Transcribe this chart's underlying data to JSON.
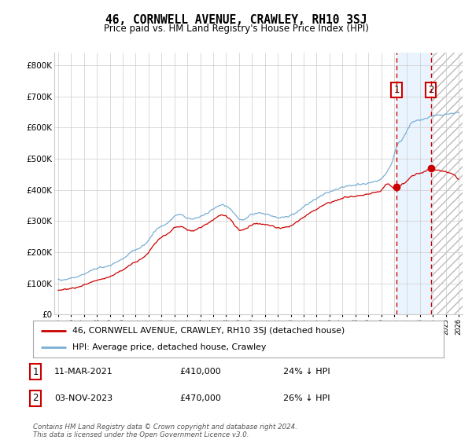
{
  "title": "46, CORNWELL AVENUE, CRAWLEY, RH10 3SJ",
  "subtitle": "Price paid vs. HM Land Registry's House Price Index (HPI)",
  "footer": "Contains HM Land Registry data © Crown copyright and database right 2024.\nThis data is licensed under the Open Government Licence v3.0.",
  "legend_line1": "46, CORNWELL AVENUE, CRAWLEY, RH10 3SJ (detached house)",
  "legend_line2": "HPI: Average price, detached house, Crawley",
  "annotation1_date": "11-MAR-2021",
  "annotation1_price": "£410,000",
  "annotation1_pct": "24% ↓ HPI",
  "annotation2_date": "03-NOV-2023",
  "annotation2_price": "£470,000",
  "annotation2_pct": "26% ↓ HPI",
  "red_color": "#cc0000",
  "blue_color": "#7aafd4",
  "background_color": "#ffffff",
  "grid_color": "#cccccc",
  "ylim": [
    0,
    840000
  ],
  "yticks": [
    0,
    100000,
    200000,
    300000,
    400000,
    500000,
    600000,
    700000,
    800000
  ],
  "xlim_start": 1994.7,
  "xlim_end": 2026.3,
  "marker1_x": 2021.19,
  "marker1_y": 410000,
  "marker2_x": 2023.84,
  "marker2_y": 470000,
  "vline1_x": 2021.19,
  "vline2_x": 2023.84,
  "shade_start": 2021.19,
  "shade_end": 2023.84,
  "hpi_years": [
    1995.0,
    1995.5,
    1996.0,
    1996.5,
    1997.0,
    1997.5,
    1998.0,
    1998.5,
    1999.0,
    1999.5,
    2000.0,
    2000.5,
    2001.0,
    2001.5,
    2002.0,
    2002.5,
    2003.0,
    2003.5,
    2004.0,
    2004.5,
    2005.0,
    2005.5,
    2006.0,
    2006.5,
    2007.0,
    2007.5,
    2008.0,
    2008.5,
    2009.0,
    2009.5,
    2010.0,
    2010.5,
    2011.0,
    2011.5,
    2012.0,
    2012.5,
    2013.0,
    2013.5,
    2014.0,
    2014.5,
    2015.0,
    2015.5,
    2016.0,
    2016.5,
    2017.0,
    2017.5,
    2018.0,
    2018.5,
    2019.0,
    2019.5,
    2020.0,
    2020.5,
    2021.0,
    2021.19,
    2021.5,
    2022.0,
    2022.5,
    2023.0,
    2023.5,
    2023.84,
    2024.0,
    2024.5,
    2025.0,
    2025.5,
    2026.0
  ],
  "hpi_values": [
    112000,
    113000,
    117000,
    122000,
    130000,
    140000,
    148000,
    152000,
    158000,
    168000,
    178000,
    196000,
    208000,
    218000,
    240000,
    268000,
    285000,
    295000,
    315000,
    320000,
    310000,
    308000,
    315000,
    325000,
    338000,
    350000,
    348000,
    330000,
    305000,
    308000,
    322000,
    325000,
    322000,
    318000,
    310000,
    312000,
    318000,
    330000,
    345000,
    360000,
    372000,
    385000,
    395000,
    400000,
    408000,
    412000,
    415000,
    418000,
    422000,
    428000,
    435000,
    460000,
    510000,
    539000,
    555000,
    590000,
    620000,
    625000,
    630000,
    635000,
    638000,
    640000,
    642000,
    645000,
    648000
  ],
  "red_years": [
    1995.0,
    1995.5,
    1996.0,
    1996.5,
    1997.0,
    1997.5,
    1998.0,
    1998.5,
    1999.0,
    1999.5,
    2000.0,
    2000.5,
    2001.0,
    2001.5,
    2002.0,
    2002.5,
    2003.0,
    2003.5,
    2004.0,
    2004.5,
    2005.0,
    2005.5,
    2006.0,
    2006.5,
    2007.0,
    2007.5,
    2008.0,
    2008.5,
    2009.0,
    2009.5,
    2010.0,
    2010.5,
    2011.0,
    2011.5,
    2012.0,
    2012.5,
    2013.0,
    2013.5,
    2014.0,
    2014.5,
    2015.0,
    2015.5,
    2016.0,
    2016.5,
    2017.0,
    2017.5,
    2018.0,
    2018.5,
    2019.0,
    2019.5,
    2020.0,
    2020.5,
    2021.0,
    2021.19,
    2021.5,
    2022.0,
    2022.5,
    2023.0,
    2023.5,
    2023.84,
    2024.0,
    2024.5,
    2025.0
  ],
  "red_values": [
    80000,
    81000,
    84000,
    88000,
    95000,
    103000,
    110000,
    115000,
    122000,
    132000,
    142000,
    158000,
    170000,
    180000,
    200000,
    228000,
    248000,
    260000,
    278000,
    282000,
    272000,
    270000,
    278000,
    290000,
    305000,
    318000,
    315000,
    298000,
    272000,
    275000,
    288000,
    292000,
    290000,
    285000,
    278000,
    280000,
    286000,
    298000,
    312000,
    326000,
    338000,
    350000,
    360000,
    365000,
    373000,
    378000,
    380000,
    383000,
    386000,
    392000,
    398000,
    420000,
    405000,
    410000,
    415000,
    430000,
    448000,
    455000,
    462000,
    470000,
    468000,
    462000,
    458000
  ]
}
